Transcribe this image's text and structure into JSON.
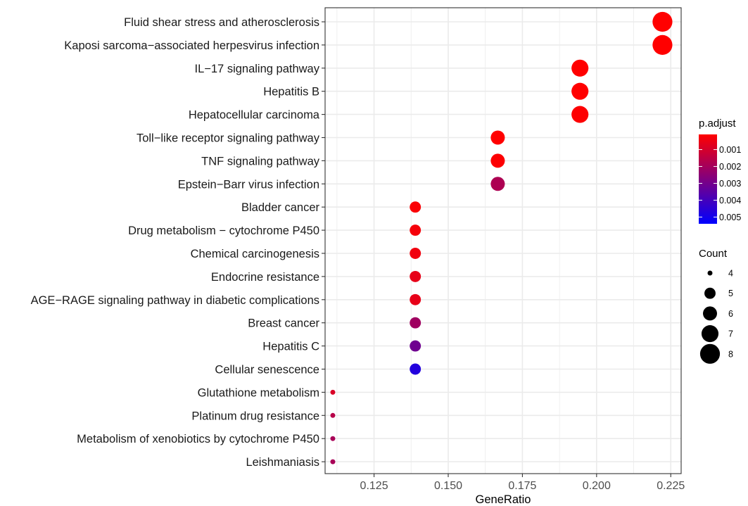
{
  "chart_data": {
    "type": "scatter",
    "xlabel": "GeneRatio",
    "ylabel": "",
    "xlim": [
      0.1085,
      0.2285
    ],
    "x_ticks": [
      0.125,
      0.15,
      0.175,
      0.2,
      0.225
    ],
    "x_tick_labels": [
      "0.125",
      "0.150",
      "0.175",
      "0.200",
      "0.225"
    ],
    "grid": true,
    "points": [
      {
        "term": "Fluid shear stress and atherosclerosis",
        "gene_ratio": 0.2222,
        "count": 8,
        "p_adjust": 0.0001
      },
      {
        "term": "Kaposi sarcoma−associated herpesvirus infection",
        "gene_ratio": 0.2222,
        "count": 8,
        "p_adjust": 0.0001
      },
      {
        "term": "IL−17 signaling pathway",
        "gene_ratio": 0.1944,
        "count": 7,
        "p_adjust": 0.0001
      },
      {
        "term": "Hepatitis B",
        "gene_ratio": 0.1944,
        "count": 7,
        "p_adjust": 0.0001
      },
      {
        "term": "Hepatocellular carcinoma",
        "gene_ratio": 0.1944,
        "count": 7,
        "p_adjust": 0.00015
      },
      {
        "term": "Toll−like receptor signaling pathway",
        "gene_ratio": 0.1667,
        "count": 6,
        "p_adjust": 0.0001
      },
      {
        "term": "TNF signaling pathway",
        "gene_ratio": 0.1667,
        "count": 6,
        "p_adjust": 0.00015
      },
      {
        "term": "Epstein−Barr virus infection",
        "gene_ratio": 0.1667,
        "count": 6,
        "p_adjust": 0.0018
      },
      {
        "term": "Bladder cancer",
        "gene_ratio": 0.1389,
        "count": 5,
        "p_adjust": 0.0002
      },
      {
        "term": "Drug metabolism − cytochrome P450",
        "gene_ratio": 0.1389,
        "count": 5,
        "p_adjust": 0.0003
      },
      {
        "term": "Chemical carcinogenesis",
        "gene_ratio": 0.1389,
        "count": 5,
        "p_adjust": 0.0004
      },
      {
        "term": "Endocrine resistance",
        "gene_ratio": 0.1389,
        "count": 5,
        "p_adjust": 0.0006
      },
      {
        "term": "AGE−RAGE signaling pathway in diabetic complications",
        "gene_ratio": 0.1389,
        "count": 5,
        "p_adjust": 0.0006
      },
      {
        "term": "Breast cancer",
        "gene_ratio": 0.1389,
        "count": 5,
        "p_adjust": 0.0021
      },
      {
        "term": "Hepatitis C",
        "gene_ratio": 0.1389,
        "count": 5,
        "p_adjust": 0.0031
      },
      {
        "term": "Cellular senescence",
        "gene_ratio": 0.1389,
        "count": 5,
        "p_adjust": 0.0047
      },
      {
        "term": "Glutathione metabolism",
        "gene_ratio": 0.1111,
        "count": 4,
        "p_adjust": 0.0009
      },
      {
        "term": "Platinum drug resistance",
        "gene_ratio": 0.1111,
        "count": 4,
        "p_adjust": 0.0016
      },
      {
        "term": "Metabolism of xenobiotics by cytochrome P450",
        "gene_ratio": 0.1111,
        "count": 4,
        "p_adjust": 0.0019
      },
      {
        "term": "Leishmaniasis",
        "gene_ratio": 0.1111,
        "count": 4,
        "p_adjust": 0.0019
      }
    ],
    "color_legend": {
      "title": "p.adjust",
      "ticks": [
        0.001,
        0.002,
        0.003,
        0.004,
        0.005
      ],
      "tick_labels": [
        "0.001",
        "0.002",
        "0.003",
        "0.004",
        "0.005"
      ],
      "range": [
        0.0001,
        0.0054
      ],
      "low_color": "#ff0000",
      "high_color": "#0000ff"
    },
    "size_legend": {
      "title": "Count",
      "values": [
        4,
        5,
        6,
        7,
        8
      ],
      "labels": [
        "4",
        "5",
        "6",
        "7",
        "8"
      ]
    },
    "colors": {
      "grid": "#ebebeb",
      "panel_border": "#333333",
      "tick_text": "#4d4d4d",
      "label_text": "#1a1a1a"
    }
  }
}
